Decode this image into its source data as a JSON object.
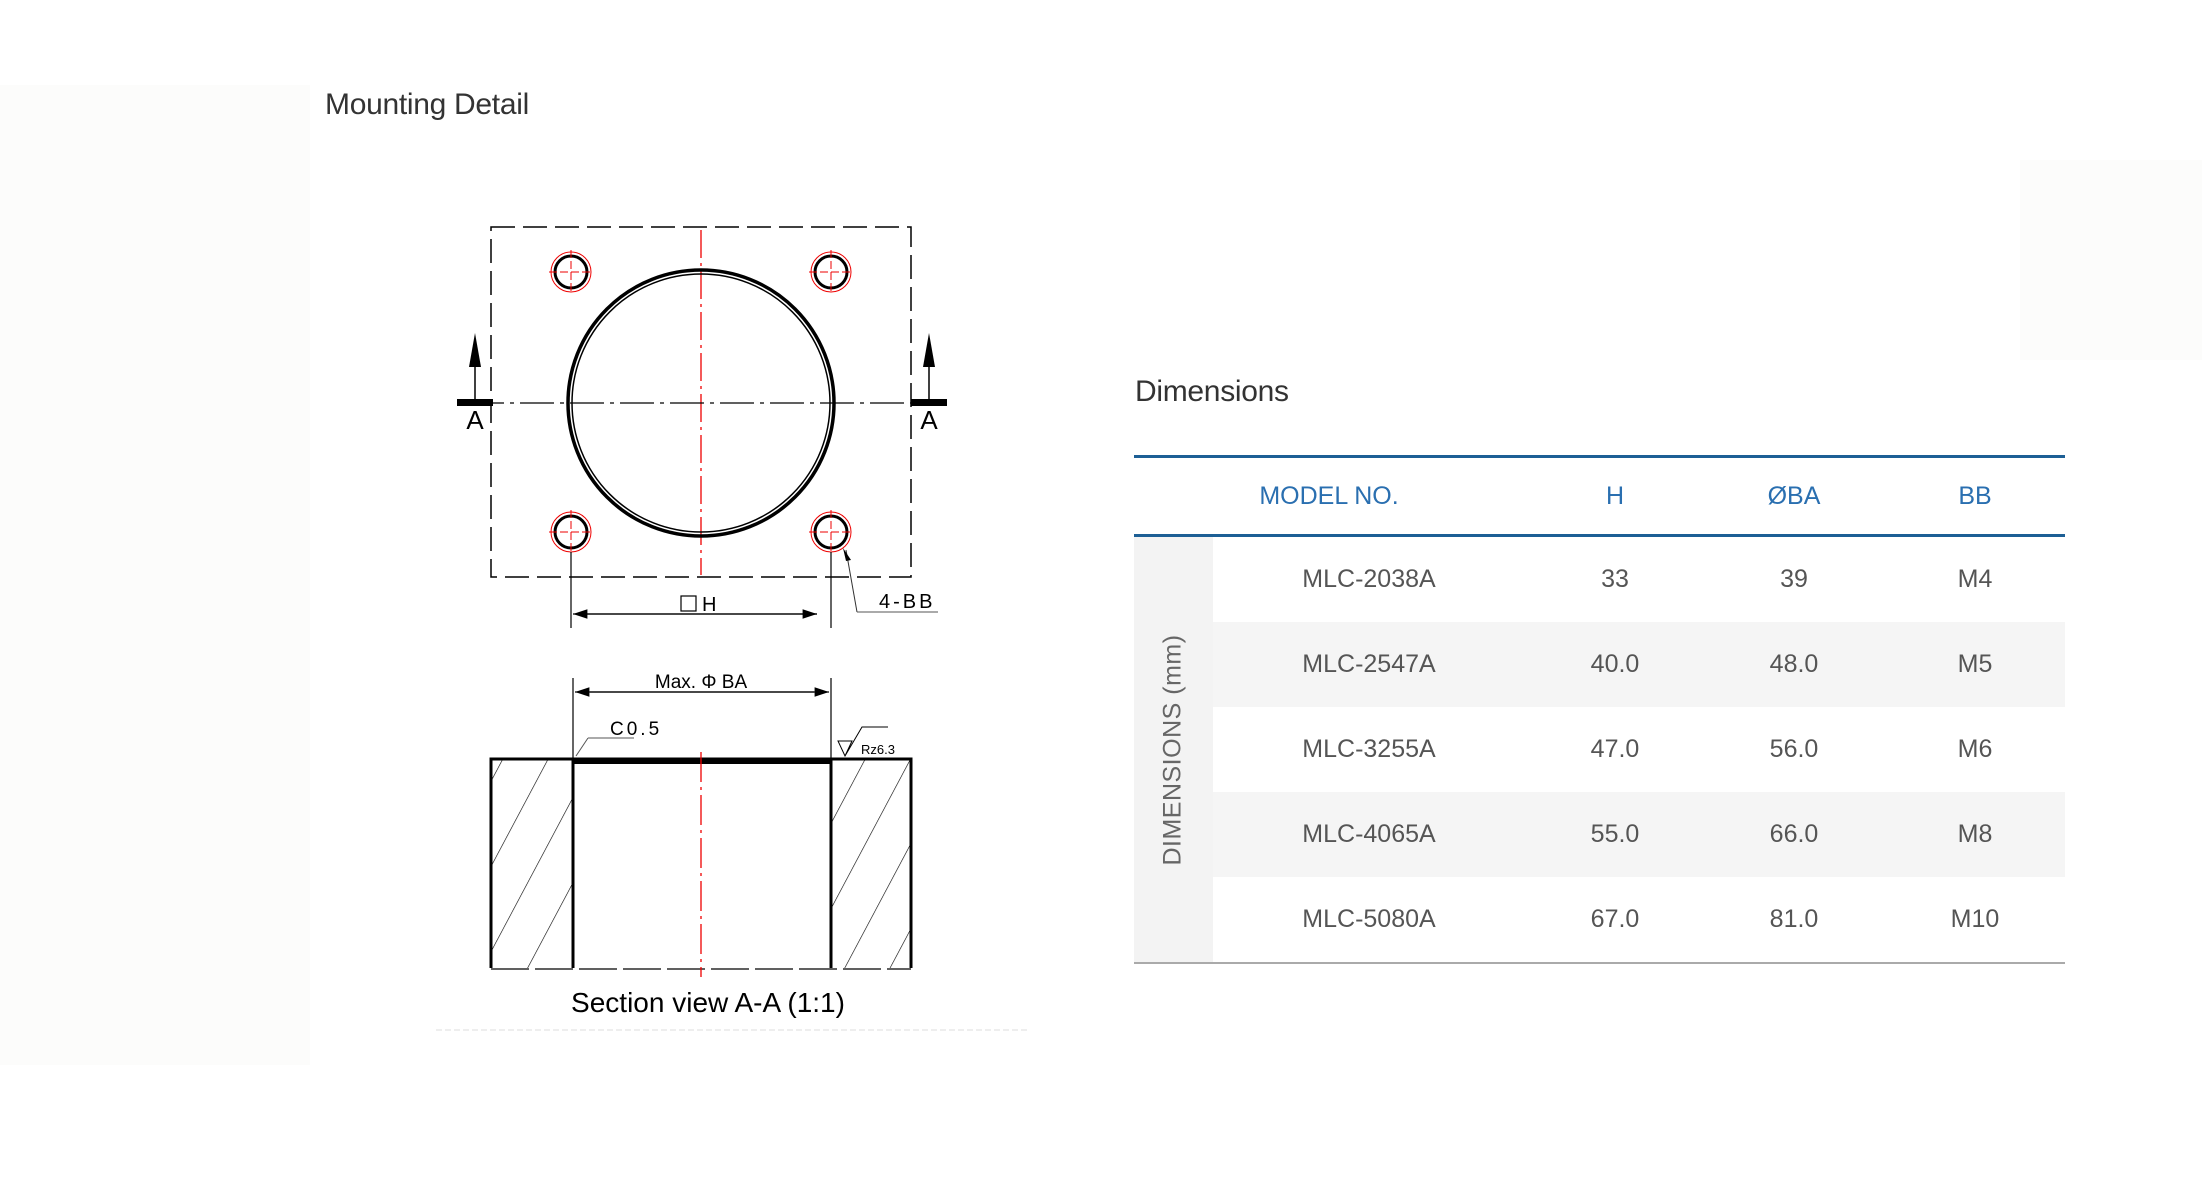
{
  "mounting": {
    "title": "Mounting Detail",
    "drawing": {
      "section_marker": "A",
      "dim_h": "H",
      "bolt_callout": "4-BB",
      "dim_ba": "Max. Φ BA",
      "chamfer": "C0.5",
      "roughness": "Rz6.3",
      "caption": "Section view A-A  (1:1)"
    }
  },
  "dimensions": {
    "title": "Dimensions",
    "side_label": "DIMENSIONS (mm)",
    "columns": [
      "MODEL NO.",
      "H",
      "ØBA",
      "BB"
    ],
    "rows": [
      [
        "MLC-2038A",
        "33",
        "39",
        "M4"
      ],
      [
        "MLC-2547A",
        "40.0",
        "48.0",
        "M5"
      ],
      [
        "MLC-3255A",
        "47.0",
        "56.0",
        "M6"
      ],
      [
        "MLC-4065A",
        "55.0",
        "66.0",
        "M8"
      ],
      [
        "MLC-5080A",
        "67.0",
        "81.0",
        "M10"
      ]
    ],
    "accent_color": "#1d5f95",
    "header_text_color": "#2a6fb0"
  }
}
